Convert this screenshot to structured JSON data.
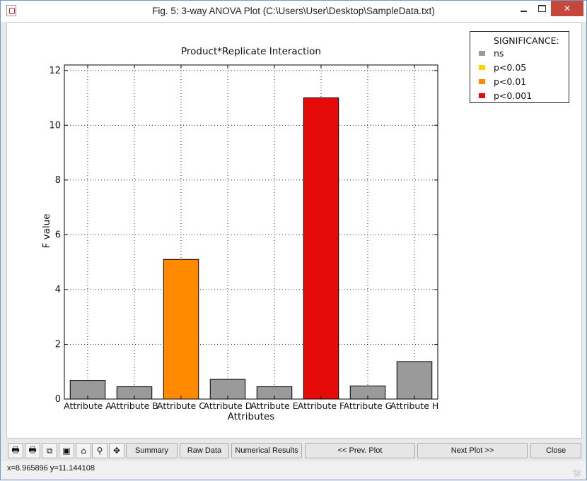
{
  "window": {
    "title": "Fig. 5: 3-way ANOVA Plot (C:\\Users\\User\\Desktop\\SampleData.txt)",
    "close_glyph": "✕"
  },
  "plot_title": "Product*Replicate Interaction",
  "legend": {
    "title": "SIGNIFICANCE:",
    "items": [
      {
        "label": "ns",
        "color": "#9a9a9a"
      },
      {
        "label": "p<0.05",
        "color": "#ffd200"
      },
      {
        "label": "p<0.01",
        "color": "#ff8a00"
      },
      {
        "label": "p<0.001",
        "color": "#e60b0b"
      }
    ]
  },
  "chart_data": {
    "type": "bar",
    "title": "Product*Replicate Interaction",
    "xlabel": "Attributes",
    "ylabel": "F value",
    "categories": [
      "Attribute A",
      "Attribute B",
      "Attribute C",
      "Attribute D",
      "Attribute E",
      "Attribute F",
      "Attribute G",
      "Attribute H"
    ],
    "tick_labels": [
      "Attribute A",
      "Attribute B",
      "Attribute C",
      "Attribute D",
      "Attribute E",
      "Attribute F",
      "Attribute G",
      "Attribute H"
    ],
    "values": [
      0.68,
      0.45,
      5.1,
      0.72,
      0.45,
      11.0,
      0.48,
      1.37
    ],
    "significance": [
      "ns",
      "ns",
      "p<0.01",
      "ns",
      "ns",
      "p<0.001",
      "ns",
      "ns"
    ],
    "ylim": [
      0,
      12.2
    ],
    "yticks": [
      0,
      2,
      4,
      6,
      8,
      10,
      12
    ],
    "grid": true,
    "legend_position": "outside-top-right"
  },
  "toolbar": {
    "icons": [
      "print-icon",
      "print-preview-icon",
      "copy-icon",
      "save-icon",
      "home-icon",
      "zoom-icon",
      "pan-icon"
    ],
    "summary_label": "Summary",
    "raw_data_label": "Raw Data",
    "numerical_results_label": "Numerical Results",
    "prev_plot_label": "<< Prev. Plot",
    "next_plot_label": "Next Plot >>",
    "close_label": "Close"
  },
  "status": {
    "coordinates": "x=8.965896  y=11.144108"
  }
}
